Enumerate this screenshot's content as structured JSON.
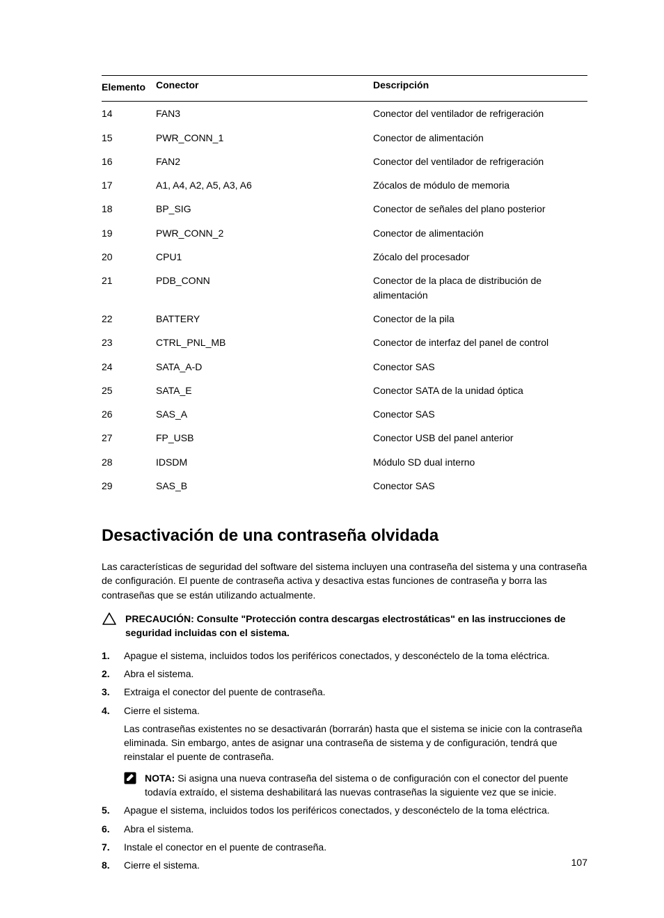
{
  "table": {
    "headers": {
      "el": "Elemento",
      "cn": "Conector",
      "de": "Descripción"
    },
    "rows": [
      {
        "el": "14",
        "cn": "FAN3",
        "de": "Conector del ventilador de refrigeración"
      },
      {
        "el": "15",
        "cn": "PWR_CONN_1",
        "de": "Conector de alimentación"
      },
      {
        "el": "16",
        "cn": "FAN2",
        "de": "Conector del ventilador de refrigeración"
      },
      {
        "el": "17",
        "cn": "A1, A4, A2, A5, A3, A6",
        "de": "Zócalos de módulo de memoria"
      },
      {
        "el": "18",
        "cn": "BP_SIG",
        "de": "Conector de señales del plano posterior"
      },
      {
        "el": "19",
        "cn": "PWR_CONN_2",
        "de": "Conector de alimentación"
      },
      {
        "el": "20",
        "cn": "CPU1",
        "de": "Zócalo del procesador"
      },
      {
        "el": "21",
        "cn": "PDB_CONN",
        "de": "Conector de la placa de distribución de alimentación"
      },
      {
        "el": "22",
        "cn": "BATTERY",
        "de": "Conector de la pila"
      },
      {
        "el": "23",
        "cn": "CTRL_PNL_MB",
        "de": "Conector de interfaz del panel de control"
      },
      {
        "el": "24",
        "cn": "SATA_A-D",
        "de": "Conector SAS"
      },
      {
        "el": "25",
        "cn": "SATA_E",
        "de": "Conector SATA de la unidad óptica"
      },
      {
        "el": "26",
        "cn": "SAS_A",
        "de": "Conector SAS"
      },
      {
        "el": "27",
        "cn": "FP_USB",
        "de": "Conector USB del panel anterior"
      },
      {
        "el": "28",
        "cn": "IDSDM",
        "de": "Módulo SD dual interno"
      },
      {
        "el": "29",
        "cn": "SAS_B",
        "de": "Conector SAS"
      }
    ]
  },
  "section_title": "Desactivación de una contraseña olvidada",
  "intro": "Las características de seguridad del software del sistema incluyen una contraseña del sistema y una contraseña de configuración. El puente de contraseña activa y desactiva estas funciones de contraseña y borra las contraseñas que se están utilizando actualmente.",
  "caution": {
    "lead": "PRECAUCIÓN: ",
    "body": "Consulte \"Protección contra descargas electrostáticas\" en las instrucciones de seguridad incluidas con el sistema."
  },
  "steps": [
    {
      "text": "Apague el sistema, incluidos todos los periféricos conectados, y desconéctelo de la toma eléctrica."
    },
    {
      "text": "Abra el sistema."
    },
    {
      "text": "Extraiga el conector del puente de contraseña."
    },
    {
      "text": "Cierre el sistema.",
      "extra": "Las contraseñas existentes no se desactivarán (borrarán) hasta que el sistema se inicie con la contraseña eliminada. Sin embargo, antes de asignar una contraseña de sistema y de configuración, tendrá que reinstalar el puente de contraseña.",
      "note": {
        "lead": "NOTA: ",
        "body": "Si asigna una nueva contraseña del sistema o de configuración con el conector del puente todavía extraído, el sistema deshabilitará las nuevas contraseñas la siguiente vez que se inicie."
      }
    },
    {
      "text": "Apague el sistema, incluidos todos los periféricos conectados, y desconéctelo de la toma eléctrica."
    },
    {
      "text": "Abra el sistema."
    },
    {
      "text": "Instale el conector en el puente de contraseña."
    },
    {
      "text": "Cierre el sistema."
    }
  ],
  "page_number": "107"
}
